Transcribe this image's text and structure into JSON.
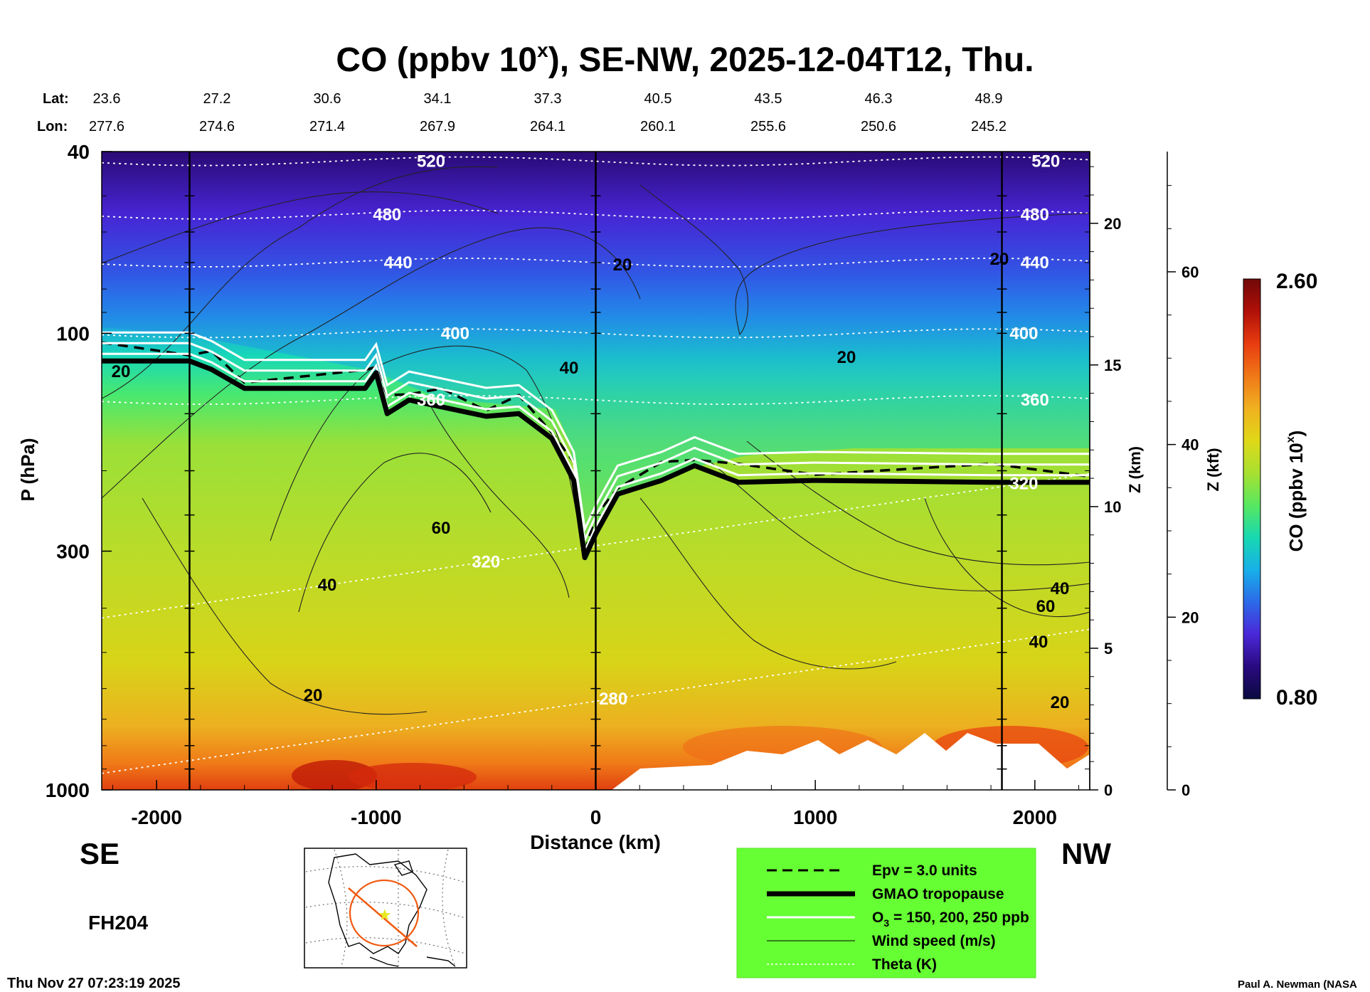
{
  "chart_data": {
    "type": "heatmap",
    "title": "CO (ppbv 10",
    "title_sup": "x",
    "title_rest": "), SE-NW, 2025-12-04T12, Thu.",
    "lat_label": "Lat:",
    "lon_label": "Lon:",
    "lat_values": [
      "23.6",
      "27.2",
      "30.6",
      "34.1",
      "37.3",
      "40.5",
      "43.5",
      "46.3",
      "48.9"
    ],
    "lon_values": [
      "277.6",
      "274.6",
      "271.4",
      "267.9",
      "264.1",
      "260.1",
      "255.6",
      "250.6",
      "245.2"
    ],
    "xlabel": "Distance (km)",
    "x_ticks": [
      -2000,
      -1000,
      0,
      1000,
      2000
    ],
    "x_tick_labels": [
      "-2000",
      "-1000",
      "0",
      "1000",
      "2000"
    ],
    "xlim": [
      -2250,
      2250
    ],
    "ylabel": "P (hPa)",
    "y_scale": "log",
    "y_ticks": [
      40,
      100,
      300,
      1000
    ],
    "y_tick_labels": [
      "40",
      "100",
      "300",
      "1000"
    ],
    "ylim": [
      1000,
      40
    ],
    "z_km_label": "Z (km)",
    "z_km_ticks": [
      0,
      5,
      10,
      15,
      20
    ],
    "z_km_tick_labels": [
      "0",
      "5",
      "10",
      "15",
      "20"
    ],
    "z_kft_label": "Z (kft)",
    "z_kft_ticks": [
      0,
      20,
      40,
      60
    ],
    "z_kft_tick_labels": [
      "0",
      "20",
      "40",
      "60"
    ],
    "colorbar": {
      "label": "CO (ppbv 10",
      "label_sup": "x",
      "label_rest": ")",
      "min": 0.8,
      "max": 2.6,
      "min_label": "0.80",
      "max_label": "2.60",
      "colors": [
        "#0a0a40",
        "#2a0a80",
        "#4a28d8",
        "#2c6ae8",
        "#18b0e8",
        "#18d8b0",
        "#58e860",
        "#a8e030",
        "#e0d818",
        "#f0b020",
        "#f07818",
        "#e83c10",
        "#b01008",
        "#700808"
      ]
    },
    "vertical_lines_km": [
      -1850,
      0,
      1850
    ],
    "theta_contours": [
      {
        "label": "520",
        "pressure_hpa": 42
      },
      {
        "label": "480",
        "pressure_hpa": 55
      },
      {
        "label": "440",
        "pressure_hpa": 70
      },
      {
        "label": "400",
        "pressure_hpa": 100
      },
      {
        "label": "360",
        "pressure_hpa": 140
      },
      {
        "label": "320",
        "pressure_hpa": 420
      },
      {
        "label": "280",
        "pressure_hpa": 920
      }
    ],
    "wind_contour_labels": [
      "20",
      "40",
      "60",
      "40",
      "20",
      "20",
      "40",
      "60",
      "40",
      "20",
      "20",
      "20"
    ],
    "tropopause_hpa": [
      {
        "x": -2250,
        "p": 115
      },
      {
        "x": -1850,
        "p": 115
      },
      {
        "x": -1750,
        "p": 120
      },
      {
        "x": -1600,
        "p": 132
      },
      {
        "x": -1050,
        "p": 132
      },
      {
        "x": -1000,
        "p": 122
      },
      {
        "x": -950,
        "p": 150
      },
      {
        "x": -850,
        "p": 140
      },
      {
        "x": -700,
        "p": 145
      },
      {
        "x": -500,
        "p": 152
      },
      {
        "x": -350,
        "p": 150
      },
      {
        "x": -200,
        "p": 170
      },
      {
        "x": -100,
        "p": 210
      },
      {
        "x": -50,
        "p": 310
      },
      {
        "x": 0,
        "p": 275
      },
      {
        "x": 100,
        "p": 225
      },
      {
        "x": 300,
        "p": 210
      },
      {
        "x": 450,
        "p": 195
      },
      {
        "x": 650,
        "p": 212
      },
      {
        "x": 1000,
        "p": 210
      },
      {
        "x": 1800,
        "p": 212
      },
      {
        "x": 2250,
        "p": 212
      }
    ],
    "region_left": "SE",
    "region_right": "NW",
    "forecast_hour": "FH204",
    "legend": [
      {
        "label": "Epv = 3.0 units",
        "style": "dashed"
      },
      {
        "label": "GMAO tropopause",
        "style": "thick"
      },
      {
        "label": "O",
        "label_sub": "3",
        "label_rest": " = 150, 200, 250 ppb",
        "style": "white"
      },
      {
        "label": "Wind speed (m/s)",
        "style": "thin"
      },
      {
        "label": "Theta (K)",
        "style": "dotted"
      }
    ],
    "legend_background": "#66ff33",
    "timestamp": "Thu Nov 27 07:23:19 2025",
    "credit": "Paul A. Newman (NASA"
  }
}
